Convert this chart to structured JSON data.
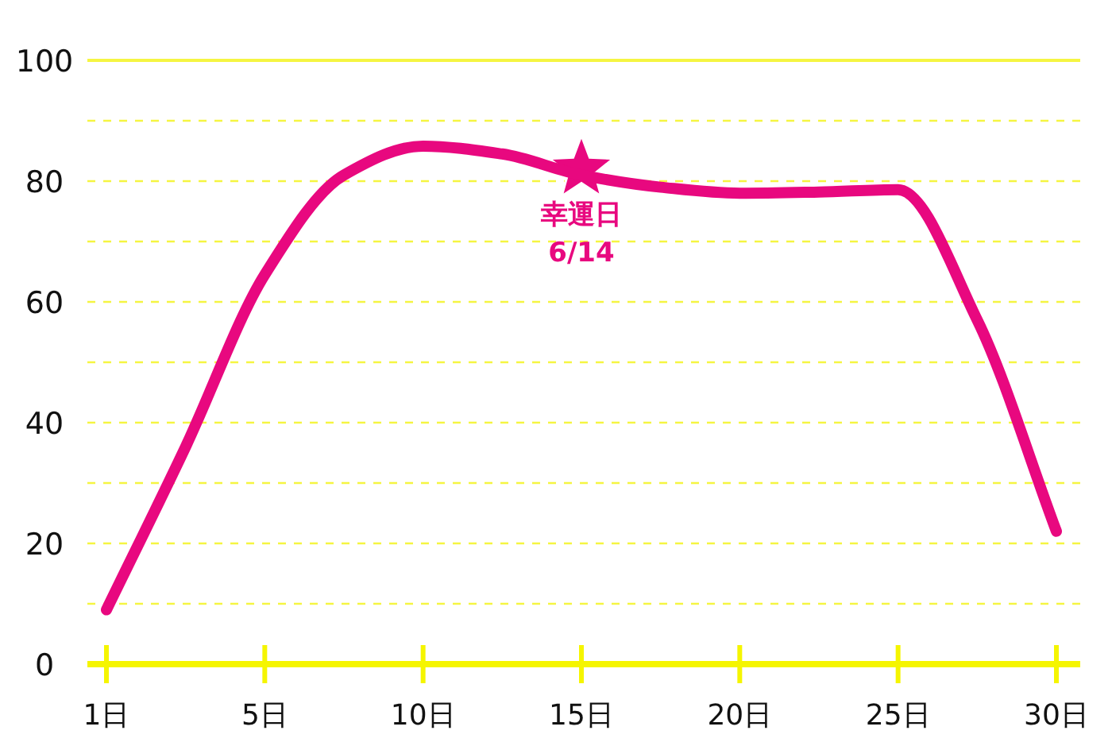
{
  "chart_data": {
    "type": "line",
    "categories": [
      "1日",
      null,
      "5日",
      null,
      "10日",
      null,
      "15日",
      null,
      "20日",
      null,
      "25日",
      null,
      "30日"
    ],
    "series": [
      {
        "color": "#e8087f",
        "values": [
          9,
          36,
          64.5,
          81,
          85.8,
          84.5,
          81,
          79,
          78,
          78.2,
          78.6,
          57,
          22
        ]
      }
    ],
    "ylim": [
      0,
      100
    ],
    "yticks": [
      0,
      {
        "value": 10,
        "label": null
      },
      20,
      {
        "value": 30,
        "label": null
      },
      40,
      {
        "value": 50,
        "label": null
      },
      60,
      {
        "value": 70,
        "label": null
      },
      80,
      {
        "value": 90,
        "label": null
      },
      100
    ],
    "grid": "y",
    "line_style": "solid",
    "annotations": [
      {
        "text": "幸運日\n6/14",
        "x": "15日",
        "y": 82
      }
    ]
  }
}
